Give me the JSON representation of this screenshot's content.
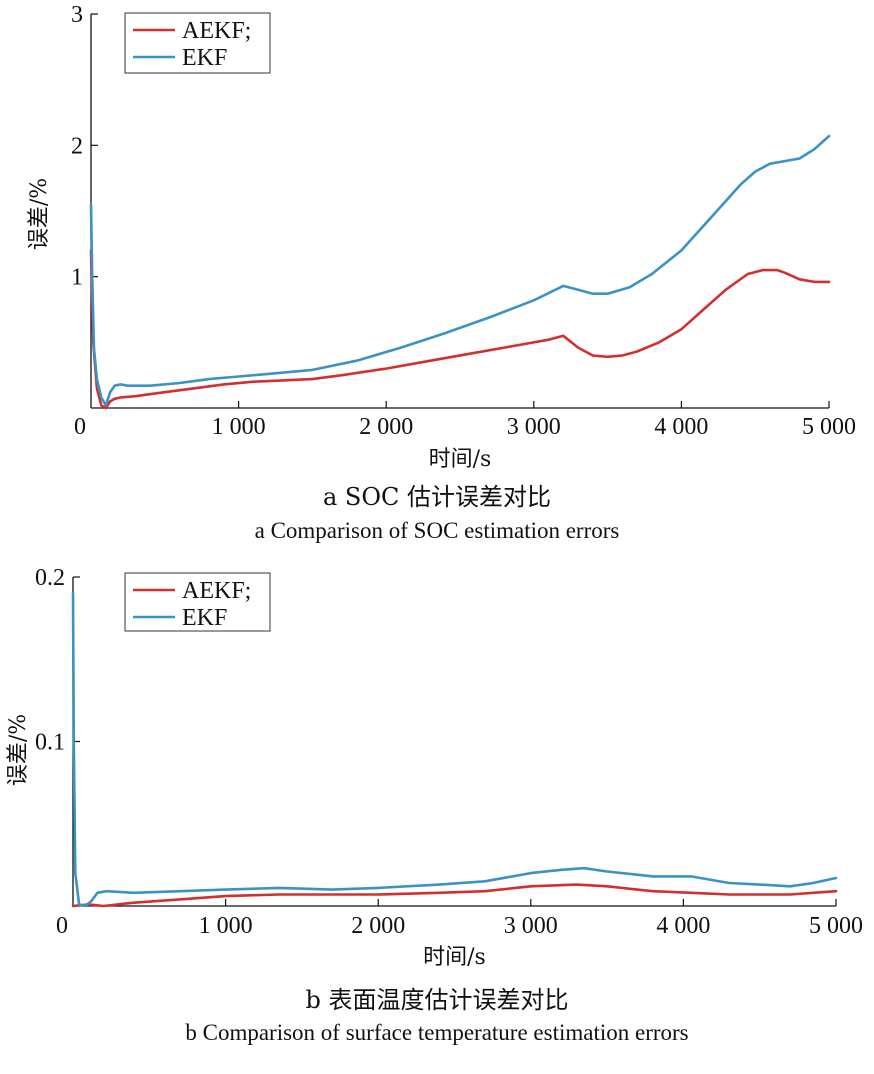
{
  "colors": {
    "AEKF": "#d1302e",
    "EKF": "#3a93c3",
    "axis": "#111111"
  },
  "chart_data": [
    {
      "id": "a",
      "type": "line",
      "xlabel": "时间/s",
      "ylabel": "误差/%",
      "xlim": [
        0,
        5000
      ],
      "ylim": [
        0,
        3
      ],
      "xticks": [
        0,
        1000,
        2000,
        3000,
        4000,
        5000
      ],
      "xtick_labels": [
        "0",
        "1 000",
        "2 000",
        "3 000",
        "4 000",
        "5 000"
      ],
      "yticks": [
        1,
        2,
        3
      ],
      "ytick_labels": [
        "1",
        "2",
        "3"
      ],
      "legend": {
        "position": "top-left",
        "entries": [
          "AEKF;",
          "EKF"
        ]
      },
      "caption_cn": "a  SOC 估计误差对比",
      "caption_en": "a  Comparison of SOC estimation errors",
      "series": [
        {
          "name": "AEKF;",
          "color_key": "AEKF",
          "x": [
            0,
            15,
            40,
            70,
            100,
            130,
            160,
            200,
            300,
            500,
            700,
            900,
            1100,
            1300,
            1500,
            1700,
            2000,
            2300,
            2600,
            2900,
            3100,
            3200,
            3300,
            3400,
            3500,
            3600,
            3700,
            3850,
            4000,
            4150,
            4300,
            4450,
            4550,
            4650,
            4700,
            4800,
            4900,
            5000
          ],
          "y": [
            1.2,
            0.5,
            0.15,
            0.02,
            0.0,
            0.05,
            0.07,
            0.08,
            0.09,
            0.12,
            0.15,
            0.18,
            0.2,
            0.21,
            0.22,
            0.25,
            0.3,
            0.36,
            0.42,
            0.48,
            0.52,
            0.55,
            0.46,
            0.4,
            0.39,
            0.4,
            0.43,
            0.5,
            0.6,
            0.75,
            0.9,
            1.02,
            1.05,
            1.05,
            1.03,
            0.98,
            0.96,
            0.96
          ]
        },
        {
          "name": "EKF",
          "color_key": "EKF",
          "x": [
            0,
            8,
            20,
            40,
            70,
            100,
            130,
            160,
            200,
            250,
            400,
            600,
            800,
            1000,
            1200,
            1500,
            1800,
            2100,
            2400,
            2700,
            3000,
            3200,
            3300,
            3400,
            3500,
            3650,
            3800,
            4000,
            4200,
            4400,
            4500,
            4600,
            4700,
            4800,
            4900,
            5000
          ],
          "y": [
            1.55,
            1.0,
            0.45,
            0.22,
            0.08,
            0.02,
            0.12,
            0.17,
            0.18,
            0.17,
            0.17,
            0.19,
            0.22,
            0.24,
            0.26,
            0.29,
            0.36,
            0.46,
            0.57,
            0.69,
            0.82,
            0.93,
            0.9,
            0.87,
            0.87,
            0.92,
            1.02,
            1.2,
            1.45,
            1.7,
            1.8,
            1.86,
            1.88,
            1.9,
            1.97,
            2.07
          ]
        }
      ]
    },
    {
      "id": "b",
      "type": "line",
      "xlabel": "时间/s",
      "ylabel": "误差/%",
      "xlim": [
        0,
        5000
      ],
      "ylim": [
        0,
        0.2
      ],
      "xticks": [
        0,
        1000,
        2000,
        3000,
        4000,
        5000
      ],
      "xtick_labels": [
        "0",
        "1 000",
        "2 000",
        "3 000",
        "4 000",
        "5 000"
      ],
      "yticks": [
        0.1,
        0.2
      ],
      "ytick_labels": [
        "0.1",
        "0.2"
      ],
      "legend": {
        "position": "top-left",
        "entries": [
          "AEKF;",
          "EKF"
        ]
      },
      "caption_cn": "b  表面温度估计误差对比",
      "caption_en": "b  Comparison of surface temperature estimation errors",
      "series": [
        {
          "name": "AEKF;",
          "color_key": "AEKF",
          "x": [
            0,
            100,
            200,
            400,
            700,
            1000,
            1350,
            1700,
            2000,
            2400,
            2700,
            3000,
            3300,
            3500,
            3800,
            4050,
            4300,
            4700,
            4850,
            5000
          ],
          "y": [
            0.0,
            0.001,
            0.0,
            0.002,
            0.004,
            0.006,
            0.007,
            0.007,
            0.007,
            0.008,
            0.009,
            0.012,
            0.013,
            0.012,
            0.009,
            0.008,
            0.007,
            0.007,
            0.008,
            0.009
          ]
        },
        {
          "name": "EKF",
          "color_key": "EKF",
          "x": [
            0,
            5,
            15,
            40,
            80,
            120,
            160,
            220,
            400,
            700,
            1000,
            1350,
            1700,
            2000,
            2400,
            2700,
            3000,
            3200,
            3350,
            3500,
            3800,
            4050,
            4300,
            4500,
            4700,
            4850,
            5000
          ],
          "y": [
            0.19,
            0.1,
            0.02,
            0.001,
            0.0,
            0.003,
            0.008,
            0.009,
            0.008,
            0.009,
            0.01,
            0.011,
            0.01,
            0.011,
            0.013,
            0.015,
            0.02,
            0.022,
            0.023,
            0.021,
            0.018,
            0.018,
            0.014,
            0.013,
            0.012,
            0.014,
            0.017
          ]
        }
      ]
    }
  ]
}
